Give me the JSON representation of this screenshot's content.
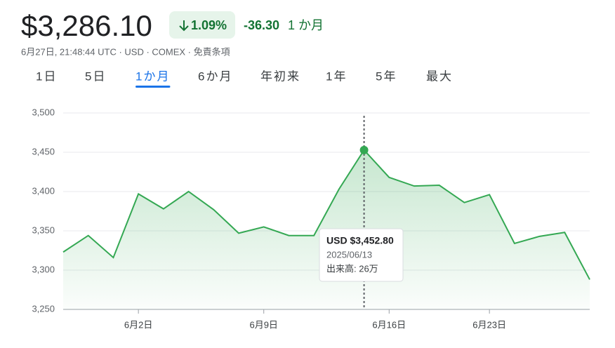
{
  "header": {
    "price": "$3,286.10",
    "change_percent": "1.09%",
    "change": "-36.30",
    "period": "1 か月",
    "subtitle": "6月27日, 21:48:44 UTC · USD · COMEX · 免責条項"
  },
  "tabs": {
    "items": [
      "1日",
      "5日",
      "1か月",
      "6か月",
      "年初来",
      "1年",
      "5年",
      "最大"
    ],
    "selected": 2
  },
  "tooltip": {
    "price": "USD $3,452.80",
    "date": "2025/06/13",
    "volume": "出来高: 26万",
    "index": 12
  },
  "chart_data": {
    "type": "area",
    "color": "#34a853",
    "categories": [
      null,
      null,
      null,
      "6月2日",
      null,
      null,
      null,
      null,
      "6月9日",
      null,
      null,
      null,
      null,
      "6月16日",
      null,
      null,
      null,
      "6月23日",
      null,
      null,
      null,
      null
    ],
    "values": [
      3323,
      3344,
      3316,
      3397,
      3378,
      3400,
      3377,
      3347,
      3355,
      3344,
      3344,
      3403,
      3452.8,
      3418,
      3407,
      3408,
      3386,
      3396,
      3334,
      3343,
      3348,
      3288
    ],
    "ylim": [
      3250,
      3500
    ],
    "yticks": [
      {
        "value": 3250,
        "label": "3,250"
      },
      {
        "value": 3300,
        "label": "3,300"
      },
      {
        "value": 3350,
        "label": "3,350"
      },
      {
        "value": 3400,
        "label": "3,400"
      },
      {
        "value": 3450,
        "label": "3,450"
      },
      {
        "value": 3500,
        "label": "3,500"
      }
    ],
    "grid": true
  }
}
